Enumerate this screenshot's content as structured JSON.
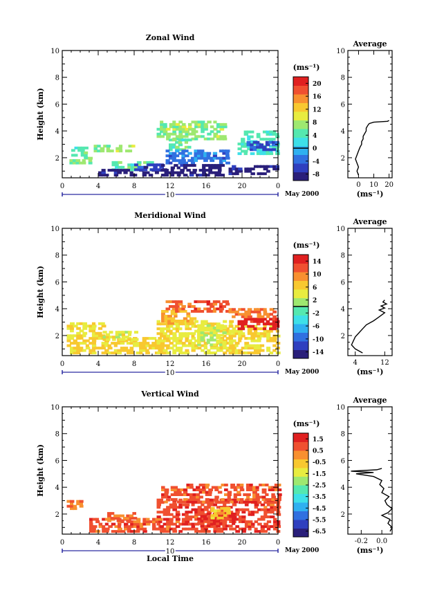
{
  "chart_data": [
    {
      "type": "heatmap",
      "title": "Zonal Wind",
      "ylabel": "Height (km)",
      "xlabel": "",
      "xlim": [
        0,
        24
      ],
      "ylim": [
        0.5,
        10
      ],
      "xticks": [
        "0",
        "4",
        "8",
        "12",
        "16",
        "20",
        "0"
      ],
      "yticks": [
        "2",
        "4",
        "6",
        "8",
        "10"
      ],
      "date_label": "10",
      "month_label": "May 2000",
      "colorbar": {
        "unit": "(ms⁻¹)",
        "range": [
          -10,
          22
        ],
        "ticks": [
          "-8",
          "-4",
          "0",
          "4",
          "8",
          "12",
          "16",
          "20"
        ],
        "contour_at": 0
      },
      "average_profile": {
        "title": "Average",
        "xlabel": "(ms⁻¹)",
        "xlim": [
          -7,
          22
        ],
        "xticks": [
          "0",
          "10",
          "20"
        ],
        "ylim": [
          0.5,
          10
        ],
        "yticks": [
          "2",
          "4",
          "6",
          "8",
          "10"
        ],
        "points": [
          {
            "h": 0.7,
            "v": 0
          },
          {
            "h": 1.0,
            "v": -1
          },
          {
            "h": 1.3,
            "v": 0
          },
          {
            "h": 1.6,
            "v": -1
          },
          {
            "h": 1.9,
            "v": -2
          },
          {
            "h": 2.2,
            "v": -1
          },
          {
            "h": 2.5,
            "v": 0
          },
          {
            "h": 2.8,
            "v": 1
          },
          {
            "h": 3.0,
            "v": 2
          },
          {
            "h": 3.2,
            "v": 2
          },
          {
            "h": 3.4,
            "v": 3
          },
          {
            "h": 3.6,
            "v": 3
          },
          {
            "h": 3.8,
            "v": 4
          },
          {
            "h": 4.0,
            "v": 5
          },
          {
            "h": 4.2,
            "v": 5
          },
          {
            "h": 4.4,
            "v": 6
          },
          {
            "h": 4.55,
            "v": 7
          },
          {
            "h": 4.65,
            "v": 10
          },
          {
            "h": 4.72,
            "v": 19
          },
          {
            "h": 4.78,
            "v": 20
          }
        ]
      },
      "cell_regions": [
        {
          "t0": 0.8,
          "t1": 3.2,
          "h0": 1.5,
          "h1": 1.9,
          "value": 6
        },
        {
          "t0": 1.0,
          "t1": 2.5,
          "h0": 1.9,
          "h1": 2.7,
          "value": 5
        },
        {
          "t0": 3.5,
          "t1": 8.0,
          "h0": 2.4,
          "h1": 2.9,
          "value": 7
        },
        {
          "t0": 5.5,
          "t1": 10.0,
          "h0": 1.0,
          "h1": 1.6,
          "value": 5
        },
        {
          "t0": 4.0,
          "t1": 11.5,
          "h0": 0.6,
          "h1": 1.0,
          "value": -9
        },
        {
          "t0": 8.0,
          "t1": 11.5,
          "h0": 1.0,
          "h1": 1.5,
          "value": -6
        },
        {
          "t0": 10.5,
          "t1": 18.0,
          "h0": 3.3,
          "h1": 4.6,
          "value": 7
        },
        {
          "t0": 11.5,
          "t1": 14.0,
          "h0": 2.5,
          "h1": 3.4,
          "value": 5
        },
        {
          "t0": 11.5,
          "t1": 18.5,
          "h0": 1.5,
          "h1": 2.5,
          "value": -3
        },
        {
          "t0": 11.0,
          "t1": 18.0,
          "h0": 0.6,
          "h1": 1.4,
          "value": -9
        },
        {
          "t0": 18.5,
          "t1": 24.0,
          "h0": 0.7,
          "h1": 1.3,
          "value": -8
        },
        {
          "t0": 19.5,
          "t1": 24.0,
          "h0": 2.2,
          "h1": 3.9,
          "value": 4
        },
        {
          "t0": 20.5,
          "t1": 24.0,
          "h0": 2.5,
          "h1": 3.2,
          "value": -5
        }
      ]
    },
    {
      "type": "heatmap",
      "title": "Meridional Wind",
      "ylabel": "Height (km)",
      "xlabel": "",
      "xlim": [
        0,
        24
      ],
      "ylim": [
        0.5,
        10
      ],
      "xticks": [
        "0",
        "4",
        "8",
        "12",
        "16",
        "20",
        "0"
      ],
      "yticks": [
        "2",
        "4",
        "6",
        "8",
        "10"
      ],
      "date_label": "10",
      "month_label": "May 2000",
      "colorbar": {
        "unit": "(ms⁻¹)",
        "range": [
          -16,
          16
        ],
        "ticks": [
          "-14",
          "-10",
          "-6",
          "-2",
          "2",
          "6",
          "10",
          "14"
        ],
        "contour_at": 0
      },
      "average_profile": {
        "title": "Average",
        "xlabel": "(ms⁻¹)",
        "xlim": [
          2,
          14
        ],
        "xticks": [
          "4",
          "12"
        ],
        "ylim": [
          0.5,
          10
        ],
        "yticks": [
          "2",
          "4",
          "6",
          "8",
          "10"
        ],
        "points": [
          {
            "h": 0.7,
            "v": 6
          },
          {
            "h": 1.0,
            "v": 4
          },
          {
            "h": 1.3,
            "v": 3
          },
          {
            "h": 1.6,
            "v": 3.5
          },
          {
            "h": 1.9,
            "v": 4
          },
          {
            "h": 2.2,
            "v": 5
          },
          {
            "h": 2.5,
            "v": 6
          },
          {
            "h": 2.8,
            "v": 7
          },
          {
            "h": 3.1,
            "v": 9
          },
          {
            "h": 3.3,
            "v": 10
          },
          {
            "h": 3.5,
            "v": 11
          },
          {
            "h": 3.7,
            "v": 12
          },
          {
            "h": 3.9,
            "v": 10.5
          },
          {
            "h": 4.05,
            "v": 12
          },
          {
            "h": 4.2,
            "v": 11
          },
          {
            "h": 4.35,
            "v": 12.5
          },
          {
            "h": 4.5,
            "v": 11.5
          },
          {
            "h": 4.65,
            "v": 12
          }
        ]
      },
      "cell_regions": [
        {
          "t0": 0.5,
          "t1": 11.0,
          "h0": 0.6,
          "h1": 1.7,
          "value": 6
        },
        {
          "t0": 0.5,
          "t1": 4.5,
          "h0": 1.7,
          "h1": 2.9,
          "value": 5
        },
        {
          "t0": 4.5,
          "t1": 8.0,
          "h0": 1.6,
          "h1": 2.2,
          "value": 4
        },
        {
          "t0": 10.5,
          "t1": 19.0,
          "h0": 0.6,
          "h1": 3.1,
          "value": 5
        },
        {
          "t0": 15.0,
          "t1": 18.0,
          "h0": 1.2,
          "h1": 2.8,
          "value": 3
        },
        {
          "t0": 11.0,
          "t1": 14.5,
          "h0": 2.8,
          "h1": 3.8,
          "value": 8
        },
        {
          "t0": 11.5,
          "t1": 18.5,
          "h0": 3.7,
          "h1": 4.5,
          "value": 12
        },
        {
          "t0": 18.5,
          "t1": 24.0,
          "h0": 0.6,
          "h1": 2.6,
          "value": 6
        },
        {
          "t0": 19.5,
          "t1": 24.0,
          "h0": 2.4,
          "h1": 3.3,
          "value": 15
        },
        {
          "t0": 18.5,
          "t1": 23.5,
          "h0": 3.3,
          "h1": 4.0,
          "value": 10
        }
      ]
    },
    {
      "type": "heatmap",
      "title": "Vertical Wind",
      "ylabel": "Height (km)",
      "xlabel": "Local Time",
      "xlim": [
        0,
        24
      ],
      "ylim": [
        0.5,
        10
      ],
      "xticks": [
        "0",
        "4",
        "8",
        "12",
        "16",
        "20",
        "0"
      ],
      "yticks": [
        "2",
        "4",
        "6",
        "8",
        "10"
      ],
      "date_label": "10",
      "month_label": "May 2000",
      "colorbar": {
        "unit": "(ms⁻¹)",
        "range": [
          -7,
          2
        ],
        "ticks": [
          "-6.5",
          "-5.5",
          "-4.5",
          "-3.5",
          "-2.5",
          "-1.5",
          "-0.5",
          "0.5",
          "1.5"
        ],
        "contour_at": null
      },
      "average_profile": {
        "title": "Average",
        "xlabel": "(ms⁻¹)",
        "xlim": [
          -0.33,
          0.1
        ],
        "xticks": [
          "-0.2",
          "0.0"
        ],
        "ylim": [
          0.5,
          10
        ],
        "yticks": [
          "2",
          "4",
          "6",
          "8",
          "10"
        ],
        "points": [
          {
            "h": 0.7,
            "v": 0.08
          },
          {
            "h": 1.0,
            "v": 0.1
          },
          {
            "h": 1.3,
            "v": 0.06
          },
          {
            "h": 1.6,
            "v": 0.08
          },
          {
            "h": 1.9,
            "v": 0.0
          },
          {
            "h": 2.1,
            "v": 0.06
          },
          {
            "h": 2.4,
            "v": 0.1
          },
          {
            "h": 2.7,
            "v": 0.05
          },
          {
            "h": 3.0,
            "v": 0.03
          },
          {
            "h": 3.3,
            "v": 0.07
          },
          {
            "h": 3.6,
            "v": 0.0
          },
          {
            "h": 3.9,
            "v": 0.02
          },
          {
            "h": 4.2,
            "v": -0.02
          },
          {
            "h": 4.5,
            "v": 0.0
          },
          {
            "h": 4.8,
            "v": -0.08
          },
          {
            "h": 5.0,
            "v": -0.25
          },
          {
            "h": 5.1,
            "v": -0.08
          },
          {
            "h": 5.2,
            "v": -0.3
          },
          {
            "h": 5.3,
            "v": -0.05
          },
          {
            "h": 5.4,
            "v": 0.0
          }
        ]
      },
      "cell_regions": [
        {
          "t0": 0.5,
          "t1": 2.0,
          "h0": 2.3,
          "h1": 2.9,
          "value": 0.6
        },
        {
          "t0": 3.0,
          "t1": 11.0,
          "h0": 0.6,
          "h1": 1.5,
          "value": 0.8
        },
        {
          "t0": 5.0,
          "t1": 8.0,
          "h0": 1.4,
          "h1": 2.1,
          "value": 0.6
        },
        {
          "t0": 10.5,
          "t1": 24.0,
          "h0": 0.6,
          "h1": 3.0,
          "value": 1.0
        },
        {
          "t0": 11.0,
          "t1": 24.0,
          "h0": 2.8,
          "h1": 4.2,
          "value": 0.9
        },
        {
          "t0": 15.0,
          "t1": 19.0,
          "h0": 1.0,
          "h1": 2.0,
          "value": 1.5
        },
        {
          "t0": 16.5,
          "t1": 18.5,
          "h0": 1.6,
          "h1": 2.4,
          "value": -0.7
        }
      ]
    }
  ],
  "colormap": [
    "#2a1f7a",
    "#2f3fbf",
    "#3070e0",
    "#2fb0f0",
    "#3ee0e8",
    "#55e8b0",
    "#9ee870",
    "#e8ec40",
    "#f8c830",
    "#f89030",
    "#f05030",
    "#e02020"
  ]
}
